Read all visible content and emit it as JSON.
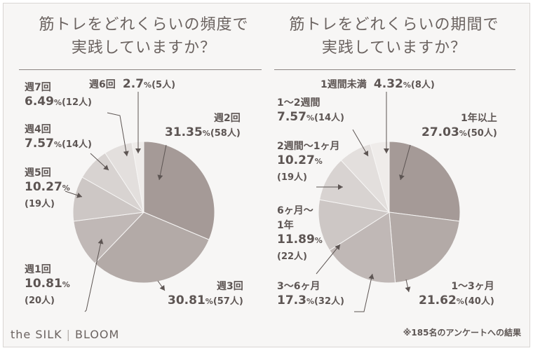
{
  "chart_data": [
    {
      "type": "pie",
      "title_line1": "筋トレをどれくらいの頻度で",
      "title_line2": "実践していますか？",
      "slices": [
        {
          "label": "週2回",
          "value": 31.35,
          "count": "(58人)"
        },
        {
          "label": "週3回",
          "value": 30.81,
          "count": "(57人)"
        },
        {
          "label": "週1回",
          "value": 10.81,
          "count": "(20人)"
        },
        {
          "label": "週5回",
          "value": 10.27,
          "count": "(19人)"
        },
        {
          "label": "週4回",
          "value": 7.57,
          "count": "(14人)"
        },
        {
          "label": "週7回",
          "value": 6.49,
          "count": "(12人)"
        },
        {
          "label": "週6回",
          "value": 2.7,
          "count": "(5人)"
        }
      ],
      "colors": [
        "#a59a97",
        "#b3aaa7",
        "#c0b8b6",
        "#cdc7c5",
        "#d8d3d1",
        "#e3dfdd",
        "#efecea"
      ]
    },
    {
      "type": "pie",
      "title_line1": "筋トレをどれくらいの期間で",
      "title_line2": "実践していますか？",
      "slices": [
        {
          "label": "1年以上",
          "value": 27.03,
          "count": "(50人)"
        },
        {
          "label": "1～3ヶ月",
          "value": 21.62,
          "count": "(40人)"
        },
        {
          "label": "3～6ヶ月",
          "value": 17.3,
          "count": "(32人)"
        },
        {
          "label": "6ヶ月～1年",
          "value": 11.89,
          "count": "(22人)"
        },
        {
          "label": "2週間～1ヶ月",
          "value": 10.27,
          "count": "(19人)"
        },
        {
          "label": "1～2週間",
          "value": 7.57,
          "count": "(14人)"
        },
        {
          "label": "1週間未満",
          "value": 4.32,
          "count": "(8人)"
        }
      ],
      "colors": [
        "#a59a97",
        "#b3aaa7",
        "#c0b8b6",
        "#cdc7c5",
        "#d8d3d1",
        "#e3dfdd",
        "#efecea"
      ]
    }
  ],
  "percent_sign": "%",
  "footnote": "※185名のアンケートへの結果",
  "brand": {
    "left": "the SILK",
    "separator": "|",
    "right": "BLOOM"
  },
  "left_labels": {
    "shu2": "週2回",
    "shu3": "週3回",
    "shu1": "週1回",
    "shu5": "週5回",
    "shu4": "週4回",
    "shu7": "週7回",
    "shu6": "週6回"
  },
  "right_labels": {
    "y1": "1年以上",
    "m13": "1～3ヶ月",
    "m36": "3～6ヶ月",
    "m6y1_a": "6ヶ月～",
    "m6y1_b": "1年",
    "w2m1_a": "2週間～1ヶ月",
    "w12": "1～2週間",
    "w1": "1週間未満"
  }
}
